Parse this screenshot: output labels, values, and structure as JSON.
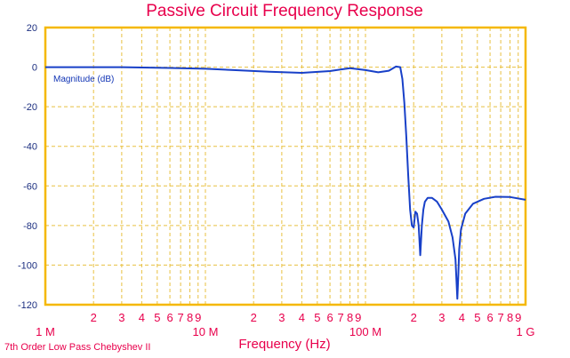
{
  "colors": {
    "frame": "#f5b800",
    "grid": "#e8c040",
    "curve": "#1840c8",
    "title": "#e8004c",
    "yticks": "#1c2f80"
  },
  "chart_data": {
    "type": "line",
    "title": "Passive Circuit Frequency Response",
    "xlabel": "Frequency (Hz)",
    "ylabel": "",
    "xscale": "log",
    "xlim": [
      1000000,
      1000000000
    ],
    "ylim": [
      -120,
      20
    ],
    "grid": true,
    "y_ticks": [
      "20",
      "0",
      "-20",
      "-40",
      "-60",
      "-80",
      "-100",
      "-120"
    ],
    "x_major_ticks": [
      {
        "value": 1000000,
        "label": "1 M"
      },
      {
        "value": 10000000,
        "label": "10 M"
      },
      {
        "value": 100000000,
        "label": "100 M"
      },
      {
        "value": 1000000000,
        "label": "1 G"
      }
    ],
    "x_minor_labels": [
      "2",
      "3",
      "4",
      "5",
      "6",
      "7",
      "8",
      "9"
    ],
    "legend_label": "Magnitude (dB)",
    "footnote": "7th Order Low Pass Chebyshev II",
    "series": [
      {
        "name": "Magnitude (dB)",
        "x": [
          1000000,
          3000000,
          6000000,
          10000000,
          15000000,
          25000000,
          40000000,
          60000000,
          80000000,
          100000000,
          120000000,
          140000000,
          155000000,
          165000000,
          170000000,
          175000000,
          180000000,
          185000000,
          190000000,
          195000000,
          200000000,
          205000000,
          210000000,
          215000000,
          220000000,
          225000000,
          230000000,
          235000000,
          245000000,
          260000000,
          280000000,
          300000000,
          330000000,
          350000000,
          365000000,
          375000000,
          380000000,
          385000000,
          395000000,
          420000000,
          470000000,
          550000000,
          650000000,
          800000000,
          1000000000
        ],
        "y": [
          0,
          0,
          -0.4,
          -0.8,
          -1.5,
          -2.3,
          -2.9,
          -2.0,
          -0.5,
          -1.5,
          -2.6,
          -1.8,
          0.3,
          0,
          -6,
          -18,
          -35,
          -55,
          -72,
          -80,
          -81,
          -73,
          -74,
          -80,
          -95,
          -80,
          -72,
          -68,
          -66,
          -66,
          -68,
          -72,
          -78,
          -86,
          -97,
          -117,
          -105,
          -92,
          -82,
          -74,
          -69,
          -66.5,
          -65.5,
          -65.6,
          -67
        ]
      }
    ]
  }
}
